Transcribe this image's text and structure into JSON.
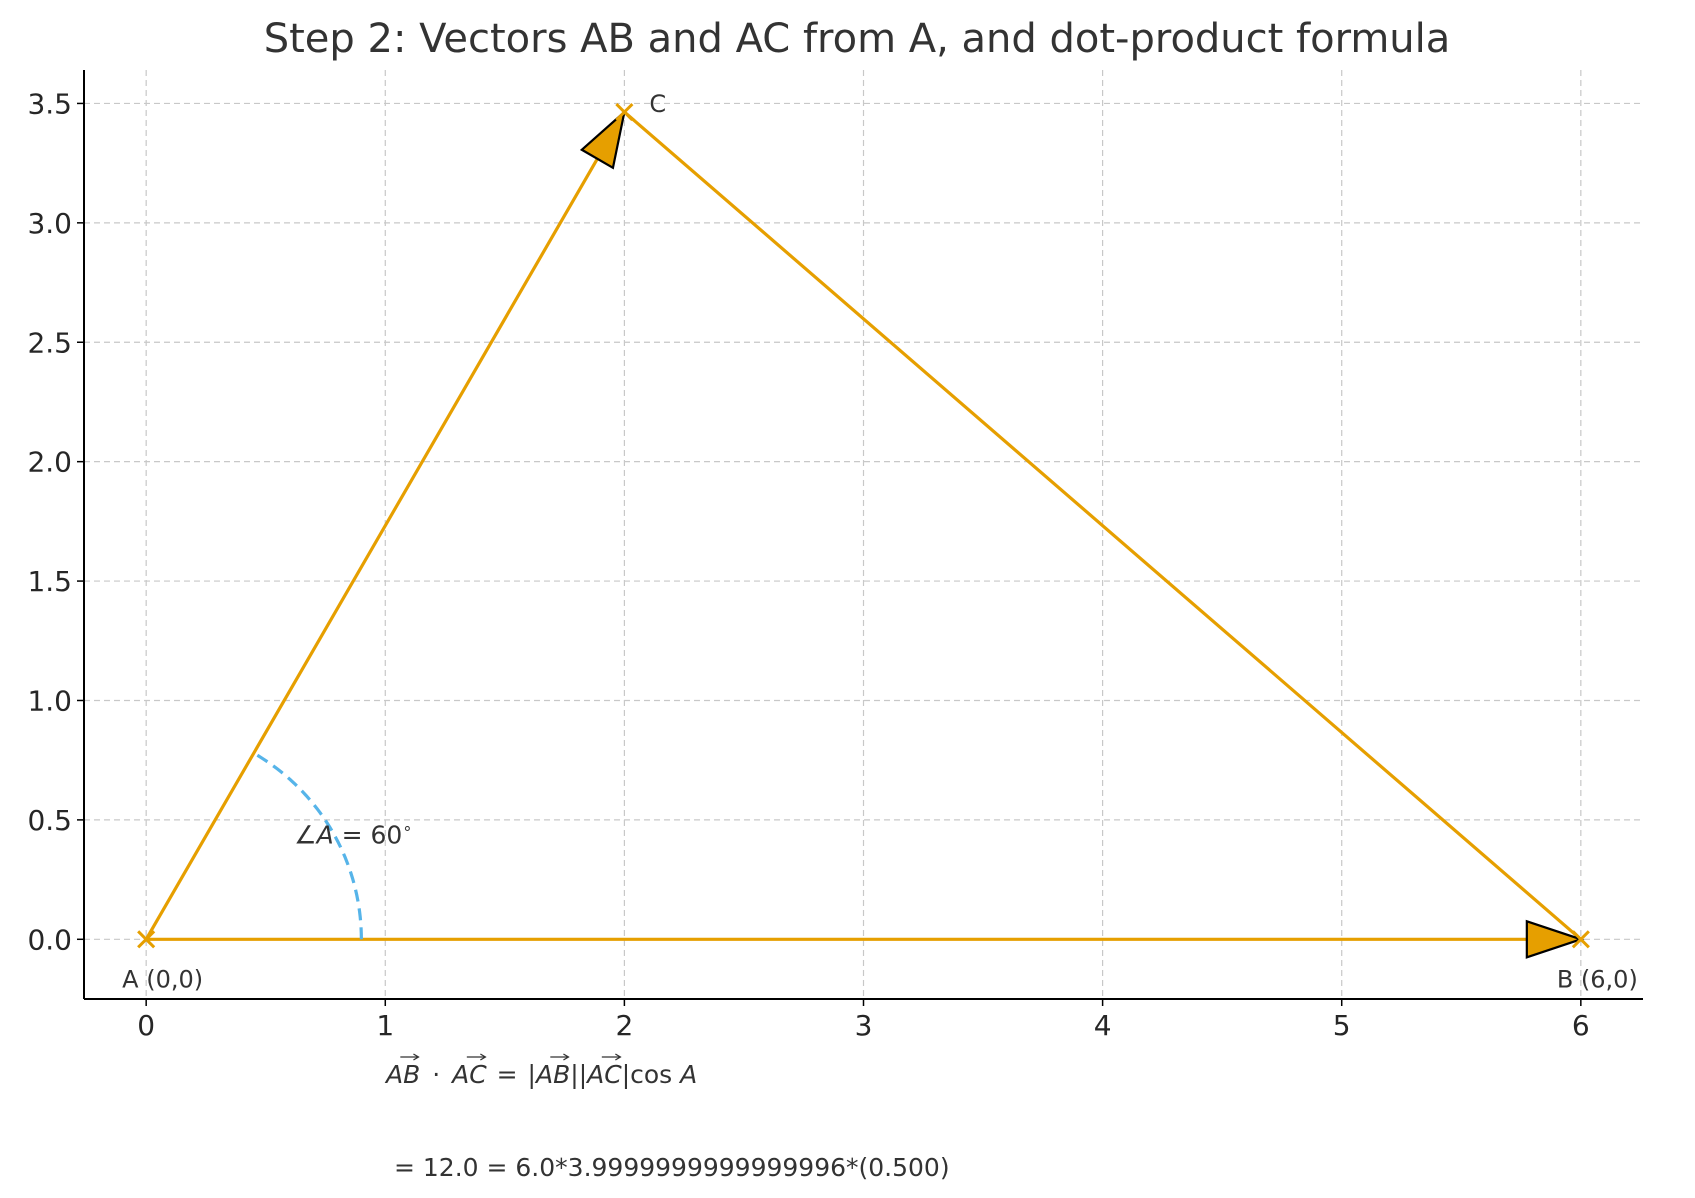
{
  "chart_data": {
    "type": "line",
    "title": "Step 2: Vectors AB and AC from A, and dot-product formula",
    "xlabel": "",
    "ylabel": "",
    "xlim": [
      -0.26,
      6.26
    ],
    "ylim": [
      -0.25,
      3.64
    ],
    "xticks": [
      0,
      1,
      2,
      3,
      4,
      5,
      6
    ],
    "xtick_labels": [
      "0",
      "1",
      "2",
      "3",
      "4",
      "5",
      "6"
    ],
    "yticks": [
      0.0,
      0.5,
      1.0,
      1.5,
      2.0,
      2.5,
      3.0,
      3.5
    ],
    "ytick_labels": [
      "0.0",
      "0.5",
      "1.0",
      "1.5",
      "2.0",
      "2.5",
      "3.0",
      "3.5"
    ],
    "grid": true,
    "colors": {
      "triangle": "#e69f00",
      "angle_arc": "#56b4e9",
      "arrow_edge": "#000000"
    },
    "points": [
      {
        "id": "A",
        "x": 0,
        "y": 0,
        "label": "A (0,0)"
      },
      {
        "id": "B",
        "x": 6,
        "y": 0,
        "label": "B (6,0)"
      },
      {
        "id": "C",
        "x": 2,
        "y": 3.4641,
        "label": "C"
      }
    ],
    "segments": [
      {
        "from": "A",
        "to": "B"
      },
      {
        "from": "A",
        "to": "C"
      },
      {
        "from": "B",
        "to": "C"
      }
    ],
    "vectors": [
      {
        "from": "A",
        "to": "B",
        "name": "AB"
      },
      {
        "from": "A",
        "to": "C",
        "name": "AC"
      }
    ],
    "angle_arc": {
      "center": "A",
      "radius": 0.9,
      "start_deg": 0,
      "end_deg": 60
    },
    "annotations": {
      "angle_label_prefix": "∠",
      "angle_label_var": "A",
      "angle_label_rest": " = 60",
      "angle_label_deg": "∘",
      "formula_line1": {
        "v1": "AB",
        "dot": "·",
        "v2": "AC",
        "eq": "=",
        "bar": "|",
        "cos": "cos",
        "var": "A"
      },
      "formula_line2": "= 12.0 = 6.0*3.9999999999999996*(0.500)"
    }
  }
}
